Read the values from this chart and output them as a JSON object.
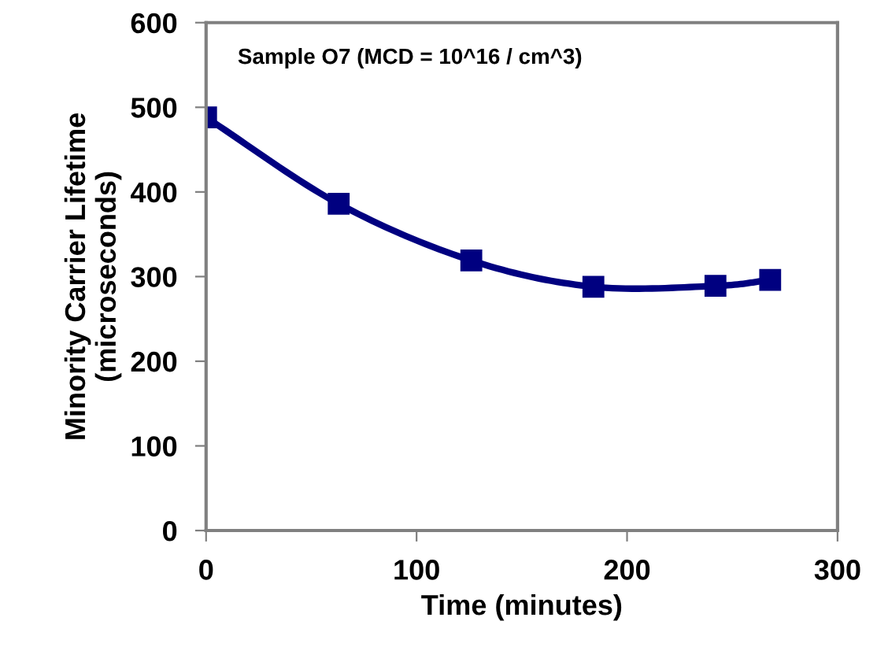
{
  "chart_data": {
    "type": "line",
    "xlabel": "Time (minutes)",
    "ylabel": "Minority Carrier Lifetime\n(microseconds)",
    "annotations": [
      "Sample O7 (MCD = 10^16 / cm^3)"
    ],
    "x": [
      0,
      63,
      126,
      184,
      242,
      268
    ],
    "series": [
      {
        "color": "#000080",
        "values": [
          488,
          386,
          319,
          288,
          289,
          296
        ]
      }
    ],
    "xlim": [
      0,
      300
    ],
    "xticks": [
      0,
      100,
      200,
      300
    ],
    "ylim": [
      0,
      600
    ],
    "yticks": [
      0,
      100,
      200,
      300,
      400,
      500,
      600
    ],
    "marker": "square",
    "line_style": "solid",
    "grid": false,
    "legend": false
  }
}
